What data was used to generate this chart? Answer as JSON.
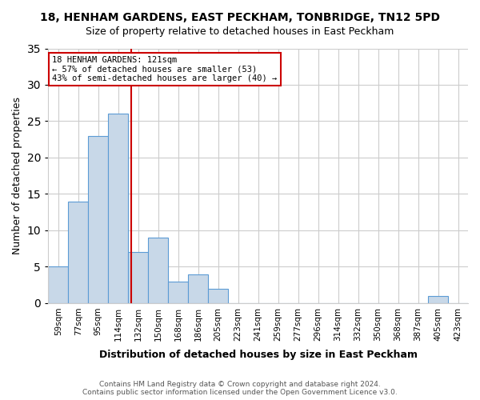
{
  "title": "18, HENHAM GARDENS, EAST PECKHAM, TONBRIDGE, TN12 5PD",
  "subtitle": "Size of property relative to detached houses in East Peckham",
  "xlabel": "Distribution of detached houses by size in East Peckham",
  "ylabel": "Number of detached properties",
  "footnote": "Contains HM Land Registry data © Crown copyright and database right 2024.\nContains public sector information licensed under the Open Government Licence v3.0.",
  "bins": [
    "59sqm",
    "77sqm",
    "95sqm",
    "114sqm",
    "132sqm",
    "150sqm",
    "168sqm",
    "186sqm",
    "205sqm",
    "223sqm",
    "241sqm",
    "259sqm",
    "277sqm",
    "296sqm",
    "314sqm",
    "332sqm",
    "350sqm",
    "368sqm",
    "387sqm",
    "405sqm",
    "423sqm"
  ],
  "values": [
    5,
    14,
    23,
    26,
    7,
    9,
    3,
    4,
    2,
    0,
    0,
    0,
    0,
    0,
    0,
    0,
    0,
    0,
    0,
    1,
    0
  ],
  "bar_color": "#c8d8e8",
  "bar_edge_color": "#5b9bd5",
  "vline_x": 3.65,
  "vline_color": "#cc0000",
  "annotation_text": "18 HENHAM GARDENS: 121sqm\n← 57% of detached houses are smaller (53)\n43% of semi-detached houses are larger (40) →",
  "annotation_box_color": "#cc0000",
  "ylim": [
    0,
    35
  ],
  "yticks": [
    0,
    5,
    10,
    15,
    20,
    25,
    30,
    35
  ],
  "background_color": "#ffffff",
  "grid_color": "#cccccc"
}
